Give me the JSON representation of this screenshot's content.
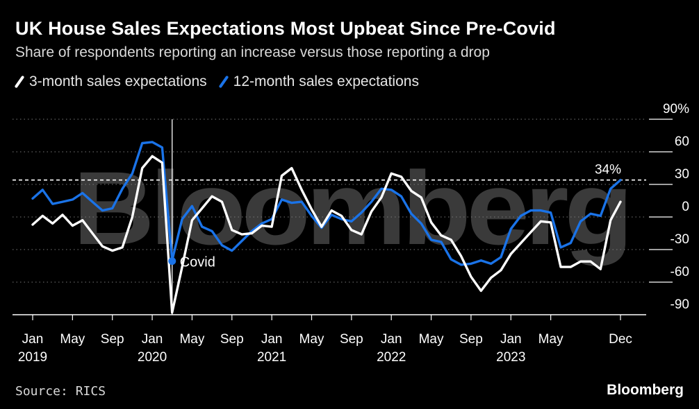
{
  "header": {
    "title": "UK House Sales Expectations Most Upbeat Since Pre-Covid",
    "subtitle": "Share of respondents reporting an increase versus those reporting a drop"
  },
  "legend": [
    {
      "label": "3-month sales expectations",
      "color": "#ffffff"
    },
    {
      "label": "12-month sales expectations",
      "color": "#1a73e8"
    }
  ],
  "footer": {
    "source": "Source: RICS",
    "brand": "Bloomberg"
  },
  "watermark": "Bloomberg",
  "chart_data": {
    "type": "line",
    "title": "UK House Sales Expectations Most Upbeat Since Pre-Covid",
    "subtitle": "Share of respondents reporting an increase versus those reporting a drop",
    "x_start": "2019-01",
    "x_end": "2023-12",
    "x_tick_labels": [
      {
        "month_index": 0,
        "line1": "Jan",
        "line2": "2019"
      },
      {
        "month_index": 4,
        "line1": "May",
        "line2": ""
      },
      {
        "month_index": 8,
        "line1": "Sep",
        "line2": ""
      },
      {
        "month_index": 12,
        "line1": "Jan",
        "line2": "2020"
      },
      {
        "month_index": 16,
        "line1": "May",
        "line2": ""
      },
      {
        "month_index": 20,
        "line1": "Sep",
        "line2": ""
      },
      {
        "month_index": 24,
        "line1": "Jan",
        "line2": "2021"
      },
      {
        "month_index": 28,
        "line1": "May",
        "line2": ""
      },
      {
        "month_index": 32,
        "line1": "Sep",
        "line2": ""
      },
      {
        "month_index": 36,
        "line1": "Jan",
        "line2": "2022"
      },
      {
        "month_index": 40,
        "line1": "May",
        "line2": ""
      },
      {
        "month_index": 44,
        "line1": "Sep",
        "line2": ""
      },
      {
        "month_index": 48,
        "line1": "Jan",
        "line2": "2023"
      },
      {
        "month_index": 52,
        "line1": "May",
        "line2": ""
      },
      {
        "month_index": 59,
        "line1": "Dec",
        "line2": ""
      }
    ],
    "y_ticks": [
      {
        "value": 90,
        "label": "90%"
      },
      {
        "value": 60,
        "label": "60"
      },
      {
        "value": 30,
        "label": "30"
      },
      {
        "value": 0,
        "label": "0"
      },
      {
        "value": -30,
        "label": "-30"
      },
      {
        "value": -60,
        "label": "-60"
      },
      {
        "value": -90,
        "label": "-90"
      }
    ],
    "ylim": [
      -90,
      90
    ],
    "grid": "dotted horizontal",
    "series": [
      {
        "name": "3-month sales expectations",
        "color": "#ffffff",
        "values": [
          -7,
          1,
          -6,
          2,
          -8,
          -3,
          -15,
          -27,
          -31,
          -28,
          0,
          45,
          56,
          50,
          -88,
          -46,
          -3,
          8,
          19,
          14,
          -12,
          -16,
          -15,
          -8,
          -9,
          38,
          45,
          25,
          7,
          -9,
          6,
          1,
          -12,
          -16,
          5,
          18,
          40,
          37,
          24,
          18,
          -5,
          -17,
          -21,
          -36,
          -55,
          -68,
          -56,
          -49,
          -34,
          -24,
          -14,
          -4,
          -5,
          -46,
          -46,
          -41,
          -41,
          -48,
          -3,
          14
        ]
      },
      {
        "name": "12-month sales expectations",
        "color": "#1a73e8",
        "values": [
          17,
          25,
          12,
          14,
          16,
          22,
          14,
          6,
          8,
          26,
          40,
          68,
          69,
          64,
          -40,
          -2,
          10,
          -9,
          -13,
          -26,
          -31,
          -22,
          -13,
          -6,
          -2,
          16,
          13,
          14,
          1,
          -10,
          2,
          -2,
          -4,
          4,
          14,
          26,
          25,
          19,
          3,
          -6,
          -21,
          -23,
          -39,
          -44,
          -43,
          -40,
          -43,
          -37,
          -11,
          1,
          6,
          6,
          4,
          -28,
          -24,
          -4,
          3,
          1,
          26,
          34
        ]
      }
    ],
    "annotations": [
      {
        "text": "Covid",
        "month_index": 14,
        "value": -40
      },
      {
        "text": "34%",
        "month_index": 59,
        "value": 34
      }
    ],
    "reference_line": {
      "value": 34
    }
  }
}
